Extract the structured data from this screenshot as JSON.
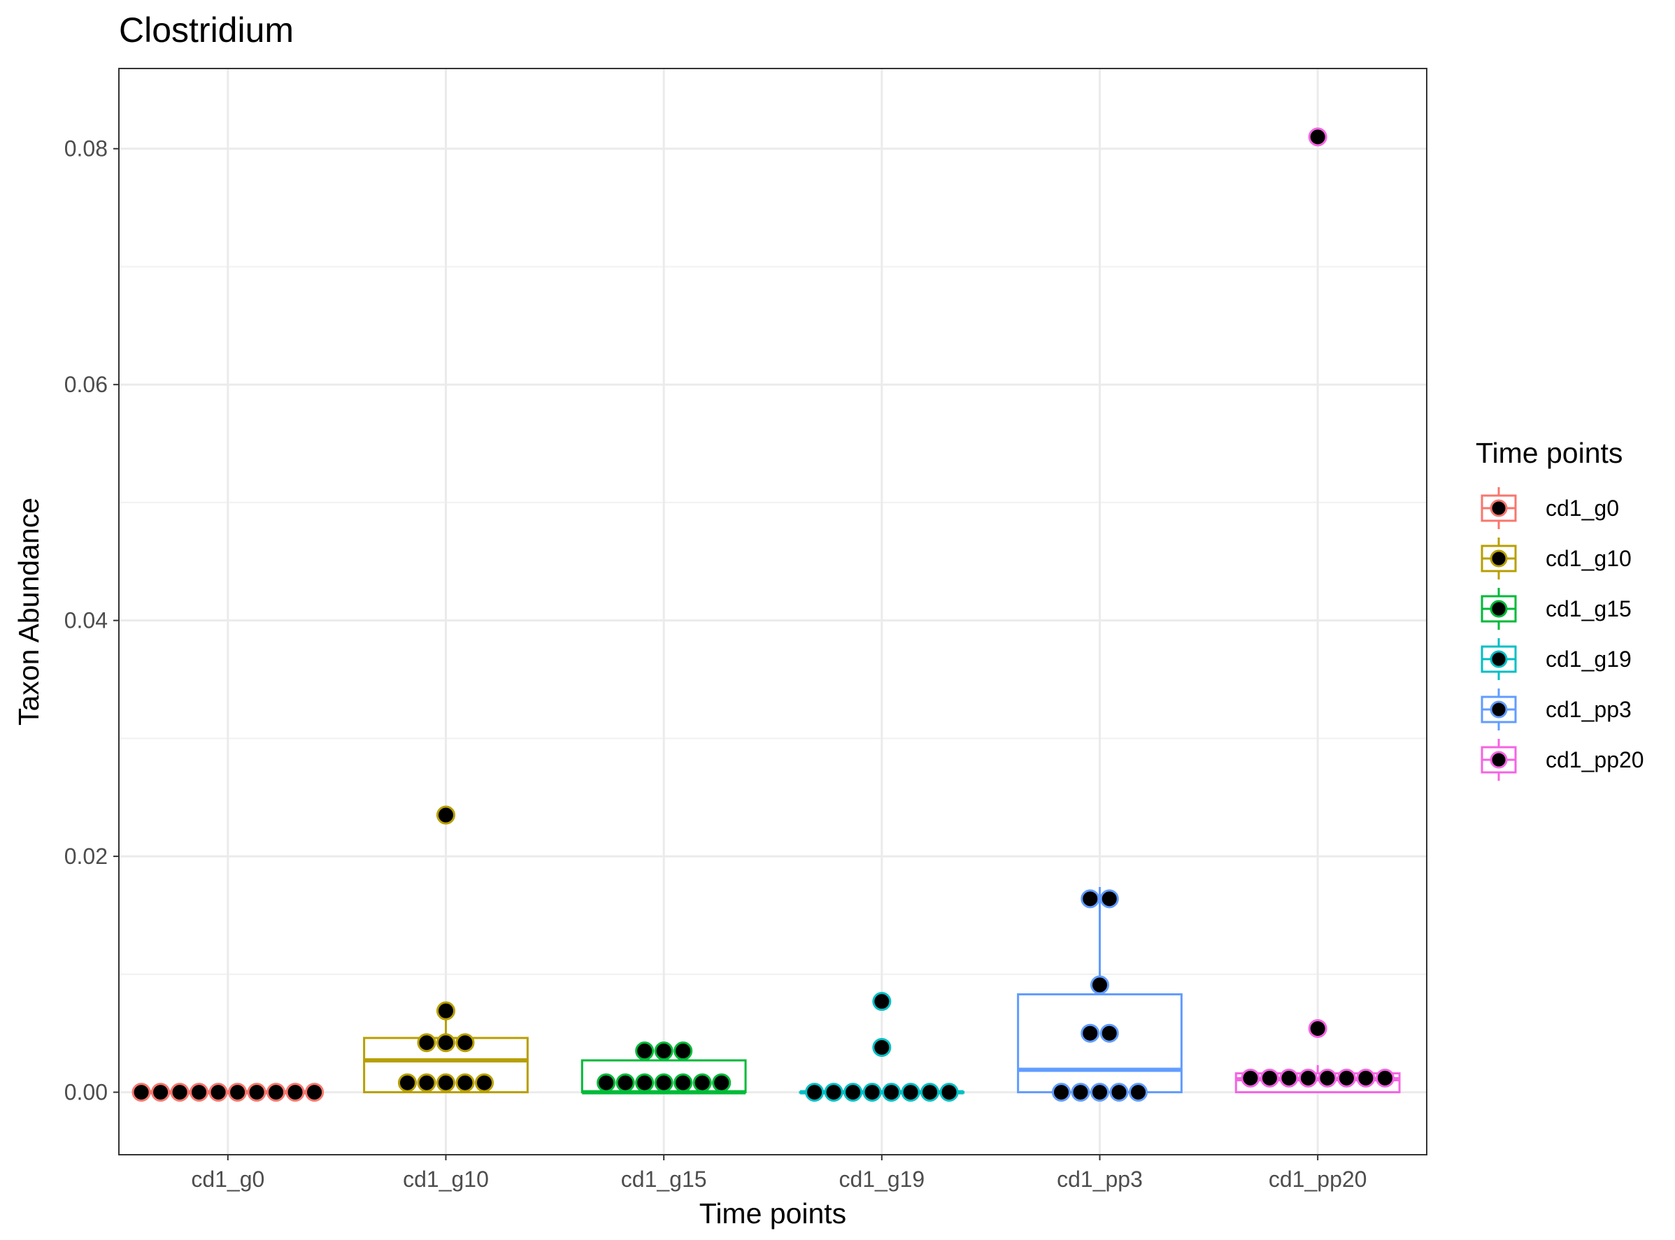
{
  "chart_data": {
    "type": "box",
    "title": "Clostridium",
    "xlabel": "Time points",
    "ylabel": "Taxon Abundance",
    "categories": [
      "cd1_g0",
      "cd1_g10",
      "cd1_g15",
      "cd1_g19",
      "cd1_pp3",
      "cd1_pp20"
    ],
    "ylim": [
      -0.0053,
      0.0868
    ],
    "yticks": [
      "0.00",
      "0.02",
      "0.04",
      "0.06",
      "0.08"
    ],
    "grid": true,
    "legend": {
      "title": "Time points",
      "position": "right",
      "entries": [
        "cd1_g0",
        "cd1_g10",
        "cd1_g15",
        "cd1_g19",
        "cd1_pp3",
        "cd1_pp20"
      ]
    },
    "colors": [
      "#F8766D",
      "#B79F00",
      "#00BA38",
      "#00BFC4",
      "#619CFF",
      "#F564E3"
    ],
    "boxes": [
      {
        "name": "cd1_g0",
        "min": 0.0,
        "q1": 0.0,
        "median": 0.0,
        "q3": 0.0,
        "max": 0.0
      },
      {
        "name": "cd1_g10",
        "min": 0.0,
        "q1": 0.0,
        "median": 0.0027,
        "q3": 0.0046,
        "max": 0.0069
      },
      {
        "name": "cd1_g15",
        "min": 0.0,
        "q1": 0.0,
        "median": 0.0,
        "q3": 0.0027,
        "max": 0.0035
      },
      {
        "name": "cd1_g19",
        "min": 0.0,
        "q1": 0.0,
        "median": 0.0,
        "q3": 0.0,
        "max": 0.0
      },
      {
        "name": "cd1_pp3",
        "min": 0.0,
        "q1": 0.0,
        "median": 0.0019,
        "q3": 0.0083,
        "max": 0.0174
      },
      {
        "name": "cd1_pp20",
        "min": 0.0,
        "q1": 0.0,
        "median": 0.0011,
        "q3": 0.0016,
        "max": 0.0023
      }
    ],
    "points": [
      [
        0,
        0,
        0,
        0,
        0,
        0,
        0,
        0,
        0,
        0
      ],
      [
        0.0235,
        0.0069,
        0.0042,
        0.0042,
        0.0042,
        0.0008,
        0.0008,
        0.0008,
        0.0008,
        0.0008
      ],
      [
        0.0035,
        0.0035,
        0.0035,
        0.0008,
        0.0008,
        0.0008,
        0.0008,
        0.0008,
        0.0008,
        0.0008
      ],
      [
        0.0077,
        0.0038,
        0,
        0,
        0,
        0,
        0,
        0,
        0,
        0
      ],
      [
        0.0164,
        0.0164,
        0.0091,
        0.005,
        0.005,
        0,
        0,
        0,
        0,
        0
      ],
      [
        0.081,
        0.0054,
        0.0012,
        0.0012,
        0.0012,
        0.0012,
        0.0012,
        0.0012,
        0.0012,
        0.0012
      ]
    ]
  }
}
